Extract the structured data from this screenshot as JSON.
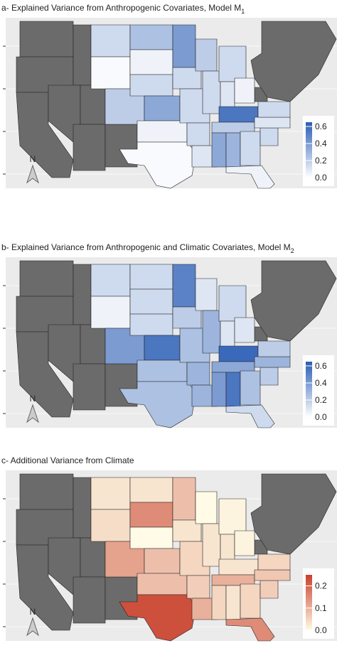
{
  "chart_data": [
    {
      "type": "choropleth",
      "title": "a- Explained Variance from Anthropogenic Covariates, Model M",
      "title_subscript": "1",
      "values": [
        0.15,
        0.02,
        0.2,
        0.25,
        0.05,
        0.15,
        0.35,
        0.05,
        0.02,
        0.4,
        0.15,
        0.15,
        0.15,
        0.1,
        0.2,
        0.15,
        0.15,
        0.1,
        0.05,
        0.55,
        0.2,
        0.35,
        0.3,
        0.15,
        0.05,
        0.15,
        0.1,
        0.15
      ],
      "colors": [
        "#ffffff",
        "#2a5db5"
      ],
      "missing_color": "#6b6b6b",
      "colorbar_lim": [
        0,
        0.65
      ],
      "colorbar_ticks": [
        {
          "value": 0,
          "label": "0.0"
        },
        0.2,
        0.4,
        0.6
      ],
      "north_label": "N"
    },
    {
      "type": "choropleth",
      "title": "b- Explained Variance from Anthropogenic and Climatic Covariates, Model M",
      "title_subscript": "2",
      "values": [
        0.15,
        0.05,
        0.4,
        0.15,
        0.15,
        0.15,
        0.55,
        0.25,
        0.25,
        0.5,
        0.2,
        0.25,
        0.3,
        0.3,
        0.1,
        0.3,
        0.15,
        0.1,
        0.1,
        0.6,
        0.35,
        0.4,
        0.55,
        0.25,
        0.15,
        0.2,
        0.3,
        0.2
      ],
      "colors": [
        "#ffffff",
        "#2a5db5"
      ],
      "missing_color": "#6b6b6b",
      "colorbar_lim": [
        0,
        0.65
      ],
      "colorbar_ticks": [
        {
          "value": 0,
          "label": "0.0"
        },
        0.2,
        0.4,
        0.6
      ],
      "north_label": "N"
    },
    {
      "type": "choropleth",
      "title": "c- Additional Variance from Climate",
      "values": [
        0.03,
        0.04,
        0.12,
        0.03,
        0.15,
        0.0,
        0.08,
        0.08,
        0.23,
        0.08,
        0.03,
        0.05,
        0.06,
        0.1,
        0.0,
        0.03,
        0.01,
        0.03,
        0.01,
        0.03,
        0.1,
        0.05,
        0.03,
        0.05,
        0.15,
        0.06,
        0.07,
        0.05
      ],
      "colors": [
        "#fffbe6",
        "#c8412d"
      ],
      "missing_color": "#6b6b6b",
      "colorbar_lim": [
        0,
        0.25
      ],
      "colorbar_ticks": [
        {
          "value": 0,
          "label": "0.0"
        },
        0.1,
        0.2
      ],
      "north_label": "N"
    }
  ]
}
